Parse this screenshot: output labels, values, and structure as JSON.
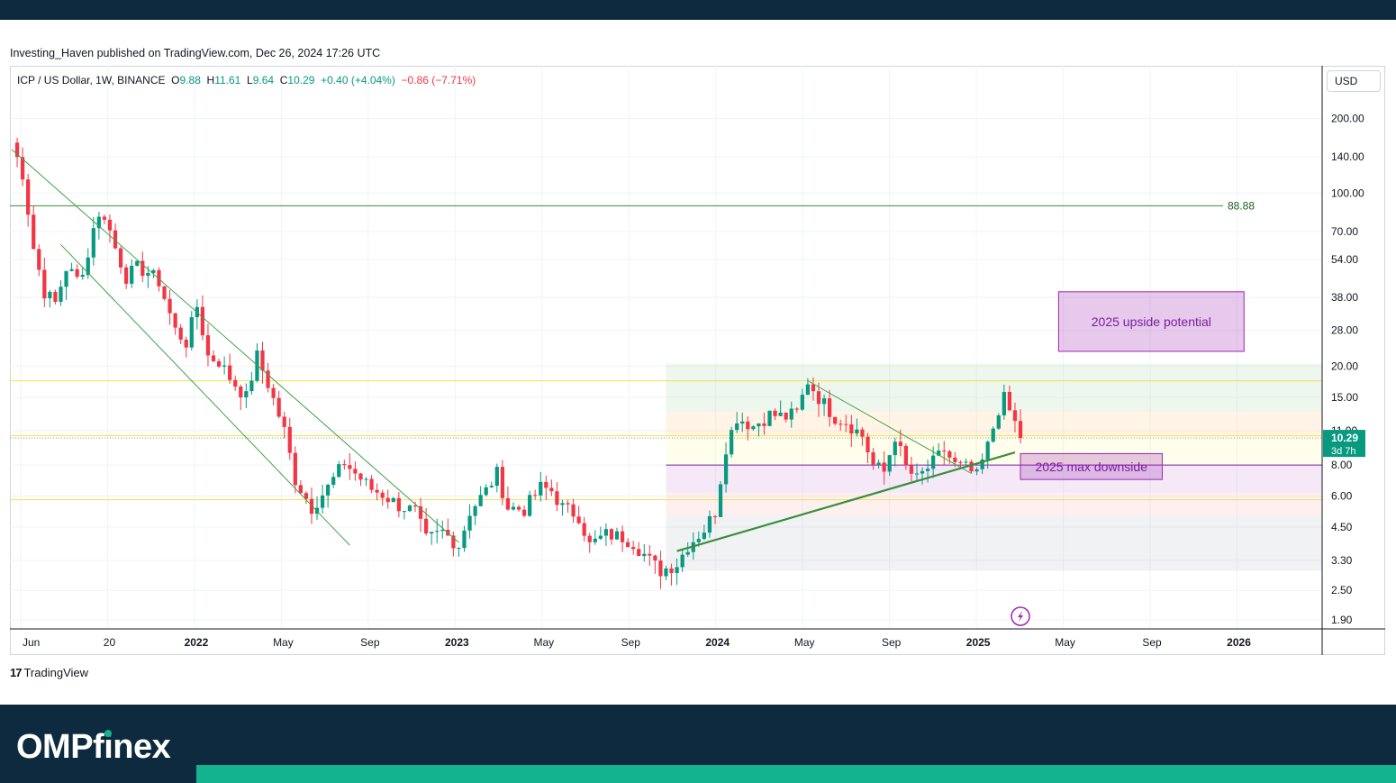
{
  "published_text": "Investing_Haven published on TradingView.com, Dec 26, 2024 17:26 UTC",
  "legend": {
    "symbol": "ICP / US Dollar, 1W, BINANCE",
    "o_label": "O",
    "o_value": "9.88",
    "h_label": "H",
    "h_value": "11.61",
    "l_label": "L",
    "l_value": "9.64",
    "c_label": "C",
    "c_value": "10.29",
    "change": "+0.40 (+4.04%)",
    "change2": "−0.86 (−7.71%)"
  },
  "currency_button": "USD",
  "colors": {
    "up": "#089981",
    "down": "#f23645",
    "trend_green": "#388e3c",
    "resistance_yellow": "#f2e24c",
    "box_purple": "#9c27b0"
  },
  "chart_data": {
    "type": "candlestick",
    "scale": "log",
    "ylim": [
      1.9,
      300
    ],
    "x_ticks": [
      "Jun",
      "20",
      "2022",
      "May",
      "Sep",
      "2023",
      "May",
      "Sep",
      "2024",
      "May",
      "Sep",
      "2025",
      "May",
      "Sep",
      "2026"
    ],
    "x_ticks_bold": [
      "2022",
      "2023",
      "2024",
      "2025",
      "2026"
    ],
    "y_ticks": [
      "200.00",
      "140.00",
      "100.00",
      "70.00",
      "54.00",
      "38.00",
      "28.00",
      "20.00",
      "15.00",
      "11.00",
      "8.00",
      "6.00",
      "4.50",
      "3.30",
      "2.50",
      "1.90"
    ],
    "x_range_weeks": [
      0,
      240
    ],
    "anchor_points": [
      {
        "week": 0,
        "price": 160
      },
      {
        "week": 2,
        "price": 120
      },
      {
        "week": 4,
        "price": 60
      },
      {
        "week": 6,
        "price": 40
      },
      {
        "week": 8,
        "price": 36
      },
      {
        "week": 10,
        "price": 50
      },
      {
        "week": 12,
        "price": 45
      },
      {
        "week": 14,
        "price": 55
      },
      {
        "week": 15,
        "price": 75
      },
      {
        "week": 17,
        "price": 82
      },
      {
        "week": 19,
        "price": 60
      },
      {
        "week": 21,
        "price": 46
      },
      {
        "week": 23,
        "price": 50
      },
      {
        "week": 25,
        "price": 48
      },
      {
        "week": 27,
        "price": 44
      },
      {
        "week": 30,
        "price": 28
      },
      {
        "week": 32,
        "price": 25
      },
      {
        "week": 34,
        "price": 35
      },
      {
        "week": 36,
        "price": 22
      },
      {
        "week": 38,
        "price": 21
      },
      {
        "week": 40,
        "price": 18
      },
      {
        "week": 43,
        "price": 15
      },
      {
        "week": 45,
        "price": 22
      },
      {
        "week": 47,
        "price": 17
      },
      {
        "week": 50,
        "price": 11
      },
      {
        "week": 52,
        "price": 7
      },
      {
        "week": 55,
        "price": 5.4
      },
      {
        "week": 58,
        "price": 6.5
      },
      {
        "week": 61,
        "price": 8.2
      },
      {
        "week": 63,
        "price": 7.4
      },
      {
        "week": 66,
        "price": 6.4
      },
      {
        "week": 68,
        "price": 6.1
      },
      {
        "week": 71,
        "price": 5.5
      },
      {
        "week": 74,
        "price": 5.2
      },
      {
        "week": 76,
        "price": 4.0
      },
      {
        "week": 79,
        "price": 4.3
      },
      {
        "week": 82,
        "price": 3.8
      },
      {
        "week": 84,
        "price": 5.2
      },
      {
        "week": 87,
        "price": 6.3
      },
      {
        "week": 89,
        "price": 7.4
      },
      {
        "week": 91,
        "price": 5.4
      },
      {
        "week": 94,
        "price": 5.3
      },
      {
        "week": 97,
        "price": 6.5
      },
      {
        "week": 99,
        "price": 6.3
      },
      {
        "week": 101,
        "price": 5.4
      },
      {
        "week": 104,
        "price": 5.0
      },
      {
        "week": 106,
        "price": 3.8
      },
      {
        "week": 109,
        "price": 4.2
      },
      {
        "week": 112,
        "price": 4.1
      },
      {
        "week": 114,
        "price": 3.9
      },
      {
        "week": 117,
        "price": 3.3
      },
      {
        "week": 119,
        "price": 3.0
      },
      {
        "week": 122,
        "price": 3.2
      },
      {
        "week": 124,
        "price": 3.8
      },
      {
        "week": 127,
        "price": 4.4
      },
      {
        "week": 129,
        "price": 5.2
      },
      {
        "week": 131,
        "price": 9.5
      },
      {
        "week": 133,
        "price": 12.5
      },
      {
        "week": 136,
        "price": 11.5
      },
      {
        "week": 139,
        "price": 12.8
      },
      {
        "week": 142,
        "price": 12.5
      },
      {
        "week": 144,
        "price": 13.0
      },
      {
        "week": 146,
        "price": 17.5
      },
      {
        "week": 148,
        "price": 15.0
      },
      {
        "week": 151,
        "price": 12.5
      },
      {
        "week": 153,
        "price": 12.0
      },
      {
        "week": 156,
        "price": 10.5
      },
      {
        "week": 158,
        "price": 8.0
      },
      {
        "week": 160,
        "price": 7.5
      },
      {
        "week": 162,
        "price": 10.5
      },
      {
        "week": 164,
        "price": 7.8
      },
      {
        "week": 166,
        "price": 7.0
      },
      {
        "week": 169,
        "price": 8.2
      },
      {
        "week": 171,
        "price": 9.2
      },
      {
        "week": 173,
        "price": 8.0
      },
      {
        "week": 175,
        "price": 7.8
      },
      {
        "week": 177,
        "price": 7.2
      },
      {
        "week": 179,
        "price": 9.5
      },
      {
        "week": 181,
        "price": 13.5
      },
      {
        "week": 182,
        "price": 14.8
      },
      {
        "week": 184,
        "price": 11.8
      },
      {
        "week": 185,
        "price": 10.29
      }
    ],
    "horizontal_levels": [
      {
        "price": 88.88,
        "label": "88.88",
        "color": "#388e3c"
      },
      {
        "price": 17.5,
        "color": "#f2e24c"
      },
      {
        "price": 10.5,
        "color": "#f2e24c"
      },
      {
        "price": 8.0,
        "color": "#7b1fa2"
      },
      {
        "price": 5.8,
        "color": "#f2e24c"
      }
    ],
    "last_price": {
      "value": "10.29",
      "countdown": "3d 7h"
    },
    "annotations": [
      {
        "text": "2025 upside potential"
      },
      {
        "text": "2025 max downside"
      }
    ]
  },
  "footer": {
    "tv_logo_mark": "17",
    "tv_logo_text": "TradingView",
    "brand_prefix": "OMPf",
    "brand_i": "i",
    "brand_suffix": "nex"
  }
}
